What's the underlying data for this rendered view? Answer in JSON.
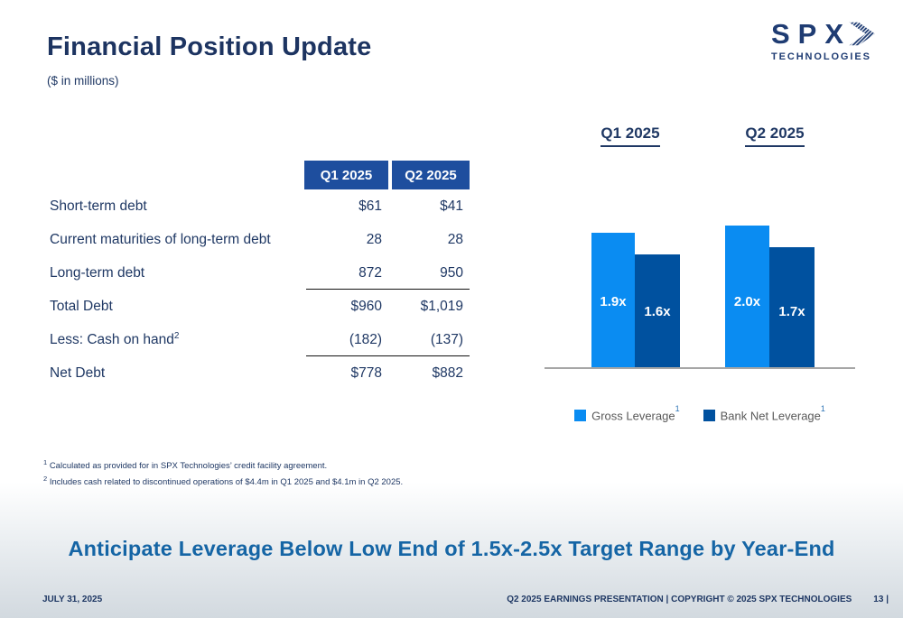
{
  "header": {
    "title": "Financial Position Update",
    "subtitle": "($ in millions)",
    "logo": {
      "name": "SPX",
      "sub": "TECHNOLOGIES"
    }
  },
  "table": {
    "columns": [
      "Q1 2025",
      "Q2 2025"
    ],
    "rows": [
      {
        "label": "Short-term debt",
        "sup": "",
        "q1": "$61",
        "q2": "$41"
      },
      {
        "label": "Current maturities of long-term debt",
        "sup": "",
        "q1": "28",
        "q2": "28"
      },
      {
        "label": "Long-term debt",
        "sup": "",
        "q1": "872",
        "q2": "950"
      },
      {
        "label": "Total Debt",
        "sup": "",
        "q1": "$960",
        "q2": "$1,019"
      },
      {
        "label": "Less: Cash on hand",
        "sup": "2",
        "q1": "(182)",
        "q2": "(137)"
      },
      {
        "label": "Net Debt",
        "sup": "",
        "q1": "$778",
        "q2": "$882"
      }
    ]
  },
  "chart_data": {
    "type": "bar",
    "categories": [
      "Q1 2025",
      "Q2 2025"
    ],
    "group_titles": [
      "Q1 2025",
      "Q2 2025"
    ],
    "series": [
      {
        "name": "Gross Leverage",
        "legend_sup": "1",
        "values": [
          1.9,
          2.0
        ],
        "labels": [
          "1.9x",
          "2.0x"
        ],
        "color": "#0a8cf2"
      },
      {
        "name": "Bank Net Leverage",
        "legend_sup": "1",
        "values": [
          1.6,
          1.7
        ],
        "labels": [
          "1.6x",
          "1.7x"
        ],
        "color": "#00519f"
      }
    ],
    "ylim": [
      0,
      2.25
    ],
    "grid": false,
    "legend_position": "bottom",
    "axis_line_color": "#a6a6a6"
  },
  "footnotes": [
    {
      "sup": "1",
      "text": "Calculated as provided for in SPX Technologies’ credit facility agreement."
    },
    {
      "sup": "2",
      "text": "Includes cash related to discontinued operations of $4.4m in Q1 2025 and $4.1m in Q2 2025."
    }
  ],
  "banner": {
    "text": "Anticipate Leverage Below Low End of 1.5x-2.5x Target Range by Year-End"
  },
  "footer": {
    "date": "JULY 31, 2025",
    "right": "Q2 2025 EARNINGS PRESENTATION | COPYRIGHT © 2025 SPX TECHNOLOGIES",
    "page": "13 |"
  },
  "colors": {
    "navy_text": "#1f3864",
    "title": "#1d3461",
    "header_cell": "#1e4e9e",
    "light_blue": "#0a8cf2",
    "dark_blue": "#00519f",
    "banner_text": "#1565a5",
    "legend_text": "#595959",
    "axis_line": "#a6a6a6",
    "background_bottom": "#d2d9df"
  }
}
